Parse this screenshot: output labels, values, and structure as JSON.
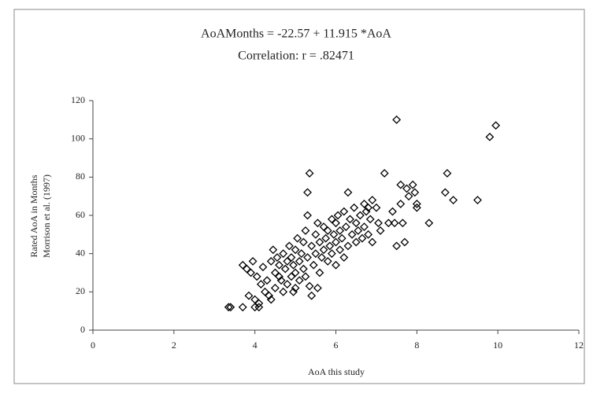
{
  "chart_data": {
    "type": "scatter",
    "title": "AoAMonths = -22.57 + 11.915 *AoA",
    "subtitle": "Correlation: r = .82471",
    "xlabel": "AoA this study",
    "ylabel": [
      "Rated AoA in Months",
      "Morrison et al. (1997)"
    ],
    "color": "#000000",
    "xlim": [
      0,
      12
    ],
    "xticks": [
      0,
      2,
      4,
      6,
      8,
      10,
      12
    ],
    "ylim": [
      0,
      120
    ],
    "yticks": [
      0,
      20,
      40,
      60,
      80,
      100,
      120
    ],
    "grid": false,
    "x": [
      3.35,
      3.4,
      3.7,
      3.7,
      3.8,
      3.9,
      3.95,
      3.85,
      4.0,
      4.0,
      4.1,
      4.05,
      4.1,
      4.15,
      4.2,
      4.25,
      4.3,
      4.35,
      4.4,
      4.4,
      4.45,
      4.5,
      4.5,
      4.55,
      4.6,
      4.65,
      4.7,
      4.7,
      4.75,
      4.8,
      4.8,
      4.85,
      4.9,
      4.9,
      4.95,
      5.0,
      5.0,
      5.0,
      5.05,
      5.1,
      5.1,
      5.15,
      5.2,
      5.2,
      5.25,
      5.3,
      5.3,
      5.3,
      5.35,
      5.35,
      5.4,
      5.4,
      5.45,
      5.5,
      5.5,
      5.55,
      5.6,
      5.6,
      5.65,
      5.7,
      5.7,
      5.75,
      5.8,
      5.8,
      5.85,
      5.9,
      5.9,
      5.95,
      6.0,
      6.0,
      6.0,
      6.05,
      6.1,
      6.1,
      6.15,
      6.2,
      6.2,
      6.25,
      6.3,
      6.3,
      6.35,
      6.4,
      6.45,
      6.5,
      6.5,
      6.55,
      6.6,
      6.65,
      6.7,
      6.7,
      6.75,
      6.8,
      6.85,
      6.9,
      6.9,
      7.0,
      7.05,
      7.1,
      7.2,
      7.3,
      7.4,
      7.45,
      7.5,
      7.5,
      7.6,
      7.6,
      7.65,
      7.7,
      7.75,
      7.8,
      7.9,
      7.95,
      8.0,
      8.0,
      8.3,
      8.7,
      8.75,
      8.9,
      9.5,
      9.8,
      9.95,
      5.25,
      4.6,
      5.55,
      6.8,
      4.95
    ],
    "values": [
      12,
      12,
      12,
      34,
      32,
      30,
      36,
      18,
      16,
      12,
      12,
      28,
      14,
      24,
      33,
      20,
      26,
      18,
      16,
      36,
      42,
      30,
      22,
      38,
      34,
      26,
      20,
      40,
      32,
      36,
      24,
      44,
      28,
      38,
      34,
      22,
      42,
      30,
      48,
      36,
      26,
      40,
      32,
      46,
      52,
      38,
      60,
      72,
      82,
      23,
      18,
      44,
      34,
      50,
      40,
      56,
      30,
      46,
      38,
      54,
      42,
      48,
      36,
      52,
      44,
      58,
      40,
      50,
      34,
      46,
      56,
      60,
      42,
      52,
      48,
      62,
      38,
      54,
      72,
      44,
      58,
      50,
      64,
      46,
      56,
      52,
      60,
      48,
      66,
      54,
      62,
      50,
      58,
      68,
      46,
      64,
      56,
      52,
      82,
      56,
      62,
      56,
      44,
      110,
      66,
      76,
      56,
      46,
      74,
      70,
      76,
      72,
      66,
      64,
      56,
      72,
      82,
      68,
      68,
      101,
      107,
      28,
      28,
      22,
      64,
      20
    ]
  }
}
